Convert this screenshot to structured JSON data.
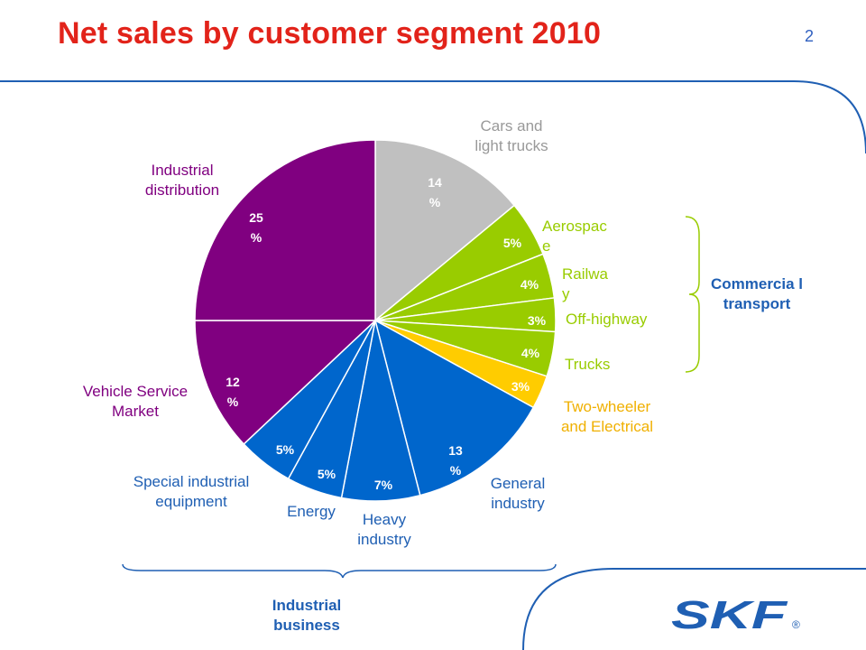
{
  "page": {
    "title": "Net sales by customer segment 2010",
    "page_number": "2"
  },
  "groups": {
    "commercial_transport": "Commercia l transport",
    "industrial_business": "Industrial business"
  },
  "logo": {
    "text": "SKF",
    "mark": "®"
  },
  "colors": {
    "title": "#e2231a",
    "industrial_distribution": "#800080",
    "cars": "#c0c0c0",
    "commercial": "#99cc00",
    "two_wheeler": "#ffcc00",
    "industrial": "#0066cc",
    "brand_blue": "#1f5fb3"
  },
  "chart_data": {
    "type": "pie",
    "title": "Net sales by customer segment 2010",
    "unit": "%",
    "slices": [
      {
        "name": "Cars and light trucks",
        "value": 14,
        "data_label": "14 %",
        "color": "#c0c0c0"
      },
      {
        "name": "Aerospac e",
        "value": 5,
        "data_label": "5%",
        "color": "#99cc00"
      },
      {
        "name": "Railwa y",
        "value": 4,
        "data_label": "4%",
        "color": "#99cc00"
      },
      {
        "name": "Off-highway",
        "value": 3,
        "data_label": "3%",
        "color": "#99cc00"
      },
      {
        "name": "Trucks",
        "value": 4,
        "data_label": "4%",
        "color": "#99cc00"
      },
      {
        "name": "Two-wheeler and Electrical",
        "value": 3,
        "data_label": "3%",
        "color": "#ffcc00"
      },
      {
        "name": "General industry",
        "value": 13,
        "data_label": "13 %",
        "color": "#0066cc"
      },
      {
        "name": "Heavy industry",
        "value": 7,
        "data_label": "7%",
        "color": "#0066cc"
      },
      {
        "name": "Energy",
        "value": 5,
        "data_label": "5%",
        "color": "#0066cc"
      },
      {
        "name": "Special industrial equipment",
        "value": 5,
        "data_label": "5%",
        "color": "#0066cc"
      },
      {
        "name": "Vehicle Service Market",
        "value": 12,
        "data_label": "12 %",
        "color": "#800080"
      },
      {
        "name": "Industrial distribution",
        "value": 25,
        "data_label": "25 %",
        "color": "#800080"
      }
    ]
  }
}
